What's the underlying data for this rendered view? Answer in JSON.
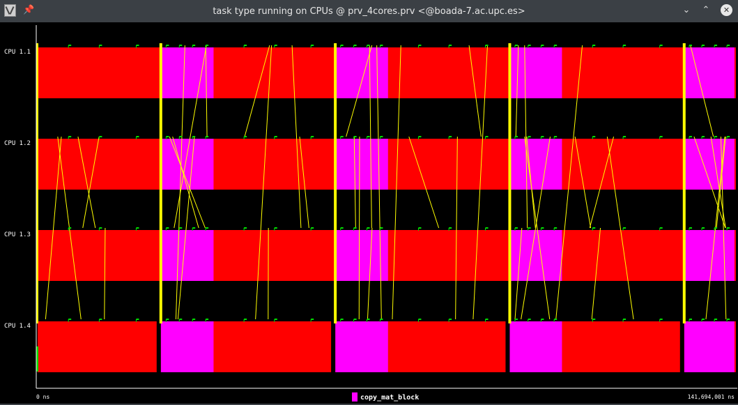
{
  "window": {
    "title": "task type running on CPUs @ prv_4cores.prv <@boada-7.ac.upc.es>",
    "icons": [
      "app-icon",
      "pin-icon",
      "chevron-down-icon",
      "chevron-up-icon",
      "close-icon"
    ]
  },
  "chart_data": {
    "type": "timeline",
    "title": "task type running on CPUs",
    "rows": [
      "CPU 1.1",
      "CPU 1.2",
      "CPU 1.3",
      "CPU 1.4"
    ],
    "time_unit": "ns",
    "time_start_label": "0 ns",
    "time_end_label": "141,694,001 ns",
    "time_range": [
      0,
      141694001
    ],
    "colors": {
      "background": "#000000",
      "idle_state": "#ff0000",
      "copy_mat_block": "#ff00ff",
      "communication_line": "#ffff00",
      "event_flag": "#00dd00",
      "axis": "#ffffff"
    },
    "legend": [
      {
        "label": "copy_mat_block",
        "color": "#ff00ff"
      }
    ],
    "phases": [
      {
        "name": "copy_mat_block",
        "start": 25000000,
        "end": 35700000
      },
      {
        "name": "copy_mat_block",
        "start": 60400000,
        "end": 71100000
      },
      {
        "name": "copy_mat_block",
        "start": 95800000,
        "end": 106400000
      },
      {
        "name": "copy_mat_block",
        "start": 131200000,
        "end": 141400000
      }
    ],
    "sync_markers": [
      25000000,
      60400000,
      95800000,
      131200000
    ]
  }
}
